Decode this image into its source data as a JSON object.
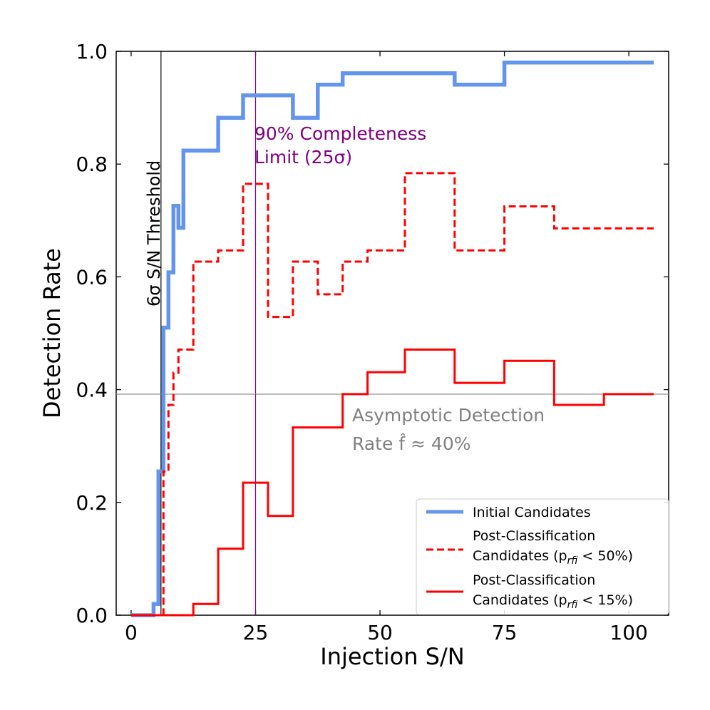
{
  "chart_data": {
    "type": "line",
    "title": "",
    "xlabel": "Injection S/N",
    "ylabel": "Detection Rate",
    "xlim": [
      -3,
      108
    ],
    "ylim": [
      0,
      1.0
    ],
    "x_ticks": [
      0,
      25,
      50,
      75,
      100
    ],
    "x_tick_labels": [
      "0",
      "25",
      "50",
      "75",
      "100"
    ],
    "y_ticks": [
      0.0,
      0.2,
      0.4,
      0.6,
      0.8,
      1.0
    ],
    "y_tick_labels": [
      "0.0",
      "0.2",
      "0.4",
      "0.6",
      "0.8",
      "1.0"
    ],
    "grid": false,
    "legend_position": "lower-right",
    "series": [
      {
        "name": "Initial Candidates",
        "legend_line1": "Initial Candidates",
        "legend_line2": "",
        "color": "#6495ED",
        "style": "solid",
        "step": true,
        "x": [
          0,
          4.5,
          5.5,
          6.5,
          7.5,
          8.5,
          9.5,
          10.5,
          12.5,
          17.5,
          22.5,
          27.5,
          32.5,
          37.5,
          42.5,
          47.5,
          55,
          65,
          75,
          85,
          95,
          105
        ],
        "values": [
          0.0,
          0.02,
          0.255,
          0.51,
          0.608,
          0.726,
          0.687,
          0.824,
          0.824,
          0.882,
          0.922,
          0.922,
          0.882,
          0.941,
          0.961,
          0.961,
          0.961,
          0.941,
          0.98,
          0.98,
          0.98,
          0.98
        ]
      },
      {
        "name": "Post-Classification Candidates (p_rfi < 50%)",
        "legend_line1": "Post-Classification",
        "legend_line2": "Candidates (p",
        "legend_sub": "rfi",
        "legend_tail": " < 50%)",
        "color": "#FF0000",
        "style": "dashed",
        "step": true,
        "x": [
          0,
          6.5,
          7.5,
          8.5,
          9.5,
          10.5,
          12.5,
          17.5,
          22.5,
          27.5,
          32.5,
          37.5,
          42.5,
          47.5,
          55,
          65,
          75,
          85,
          95,
          105
        ],
        "values": [
          0.0,
          0.255,
          0.373,
          0.43,
          0.471,
          0.471,
          0.627,
          0.647,
          0.765,
          0.529,
          0.627,
          0.569,
          0.627,
          0.647,
          0.784,
          0.647,
          0.725,
          0.686,
          0.686,
          0.686
        ]
      },
      {
        "name": "Post-Classification Candidates (p_rfi < 15%)",
        "legend_line1": "Post-Classification",
        "legend_line2": "Candidates (p",
        "legend_sub": "rfi",
        "legend_tail": " < 15%)",
        "color": "#FF0000",
        "style": "solid",
        "step": true,
        "x": [
          0,
          12.5,
          17.5,
          22.5,
          27.5,
          32.5,
          42.5,
          47.5,
          55,
          65,
          75,
          85,
          95,
          105
        ],
        "values": [
          0.0,
          0.02,
          0.118,
          0.235,
          0.176,
          0.333,
          0.392,
          0.431,
          0.471,
          0.412,
          0.451,
          0.373,
          0.392,
          0.392
        ]
      }
    ],
    "reference_lines": [
      {
        "orientation": "vertical",
        "value": 6,
        "color": "#000000",
        "label": "6σ S/N Threshold"
      },
      {
        "orientation": "vertical",
        "value": 25,
        "color": "#800080",
        "label_line1": "90% Completeness",
        "label_line2": "Limit (25σ)"
      },
      {
        "orientation": "horizontal",
        "value": 0.392,
        "color": "#808080",
        "label_line1": "Asymptotic Detection",
        "label_line2": "Rate f̂ ≈ 40%"
      }
    ]
  }
}
